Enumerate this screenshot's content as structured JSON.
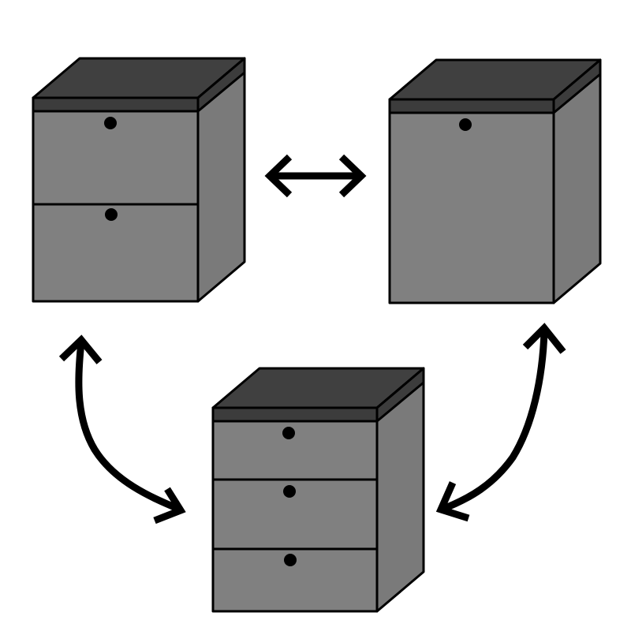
{
  "diagram": {
    "description_type": "furniture-configuration-cycle",
    "colors": {
      "background": "#ffffff",
      "front": "#808080",
      "side": "#7a7a7a",
      "top": "#404040",
      "top_strip": "#3c3c3c",
      "outline": "#000000",
      "knob": "#000000",
      "arrow": "#000000"
    },
    "units": [
      {
        "id": "two-drawer-cabinet",
        "drawer_count": 2
      },
      {
        "id": "single-door-cabinet",
        "drawer_count": 1
      },
      {
        "id": "three-drawer-cabinet",
        "drawer_count": 3
      }
    ],
    "connections": [
      {
        "from": "two-drawer-cabinet",
        "to": "single-door-cabinet",
        "direction": "bidirectional"
      },
      {
        "from": "two-drawer-cabinet",
        "to": "three-drawer-cabinet",
        "direction": "bidirectional"
      },
      {
        "from": "single-door-cabinet",
        "to": "three-drawer-cabinet",
        "direction": "bidirectional"
      }
    ]
  }
}
